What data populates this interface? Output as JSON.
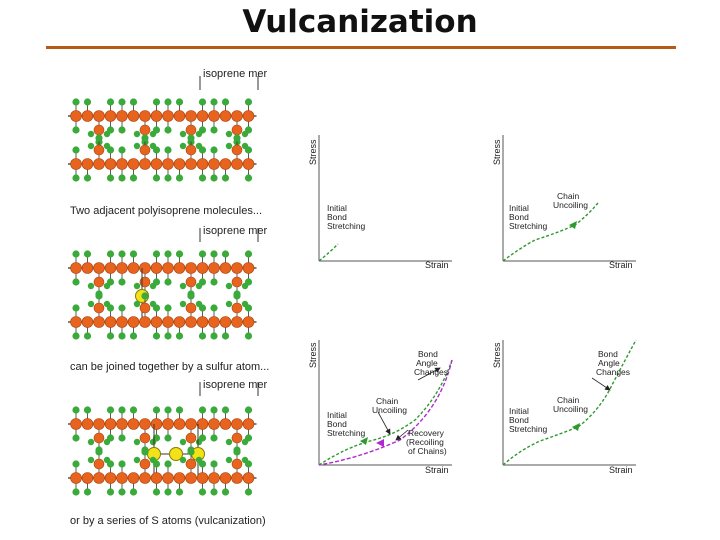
{
  "title": "Vulcanization",
  "colors": {
    "carbon": "#e8641e",
    "hydrogen": "#3aaa3a",
    "sulfur": "#f2e21a",
    "rule": "#b55a18",
    "curve": "#2e9a2e",
    "recovery": "#b02ad0"
  },
  "molecule_panels": [
    {
      "header": "isoprene mer",
      "caption": "Two adjacent polyisoprene molecules..."
    },
    {
      "header": "isoprene mer",
      "caption": "can be joined together by a sulfur atom..."
    },
    {
      "header": "isoprene mer",
      "caption": "or by a series of S atoms (vulcanization)"
    }
  ],
  "graphs": [
    {
      "ylabel": "Stress",
      "xlabel": "Strain",
      "labels": [
        "Initial",
        "Bond",
        "Stretching"
      ]
    },
    {
      "ylabel": "Stress",
      "xlabel": "Strain",
      "labels": [
        "Initial",
        "Bond",
        "Stretching",
        "Chain",
        "Uncoiling"
      ]
    },
    {
      "ylabel": "Stress",
      "xlabel": "Strain",
      "labels": [
        "Initial",
        "Bond",
        "Stretching",
        "Chain",
        "Uncoiling",
        "Bond",
        "Angle",
        "Changes",
        "Recovery",
        "(Recoiling",
        "of Chains)"
      ]
    },
    {
      "ylabel": "Stress",
      "xlabel": "Strain",
      "labels": [
        "Initial",
        "Bond",
        "Stretching",
        "Chain",
        "Uncoiling",
        "Bond",
        "Angle",
        "Changes"
      ]
    }
  ]
}
